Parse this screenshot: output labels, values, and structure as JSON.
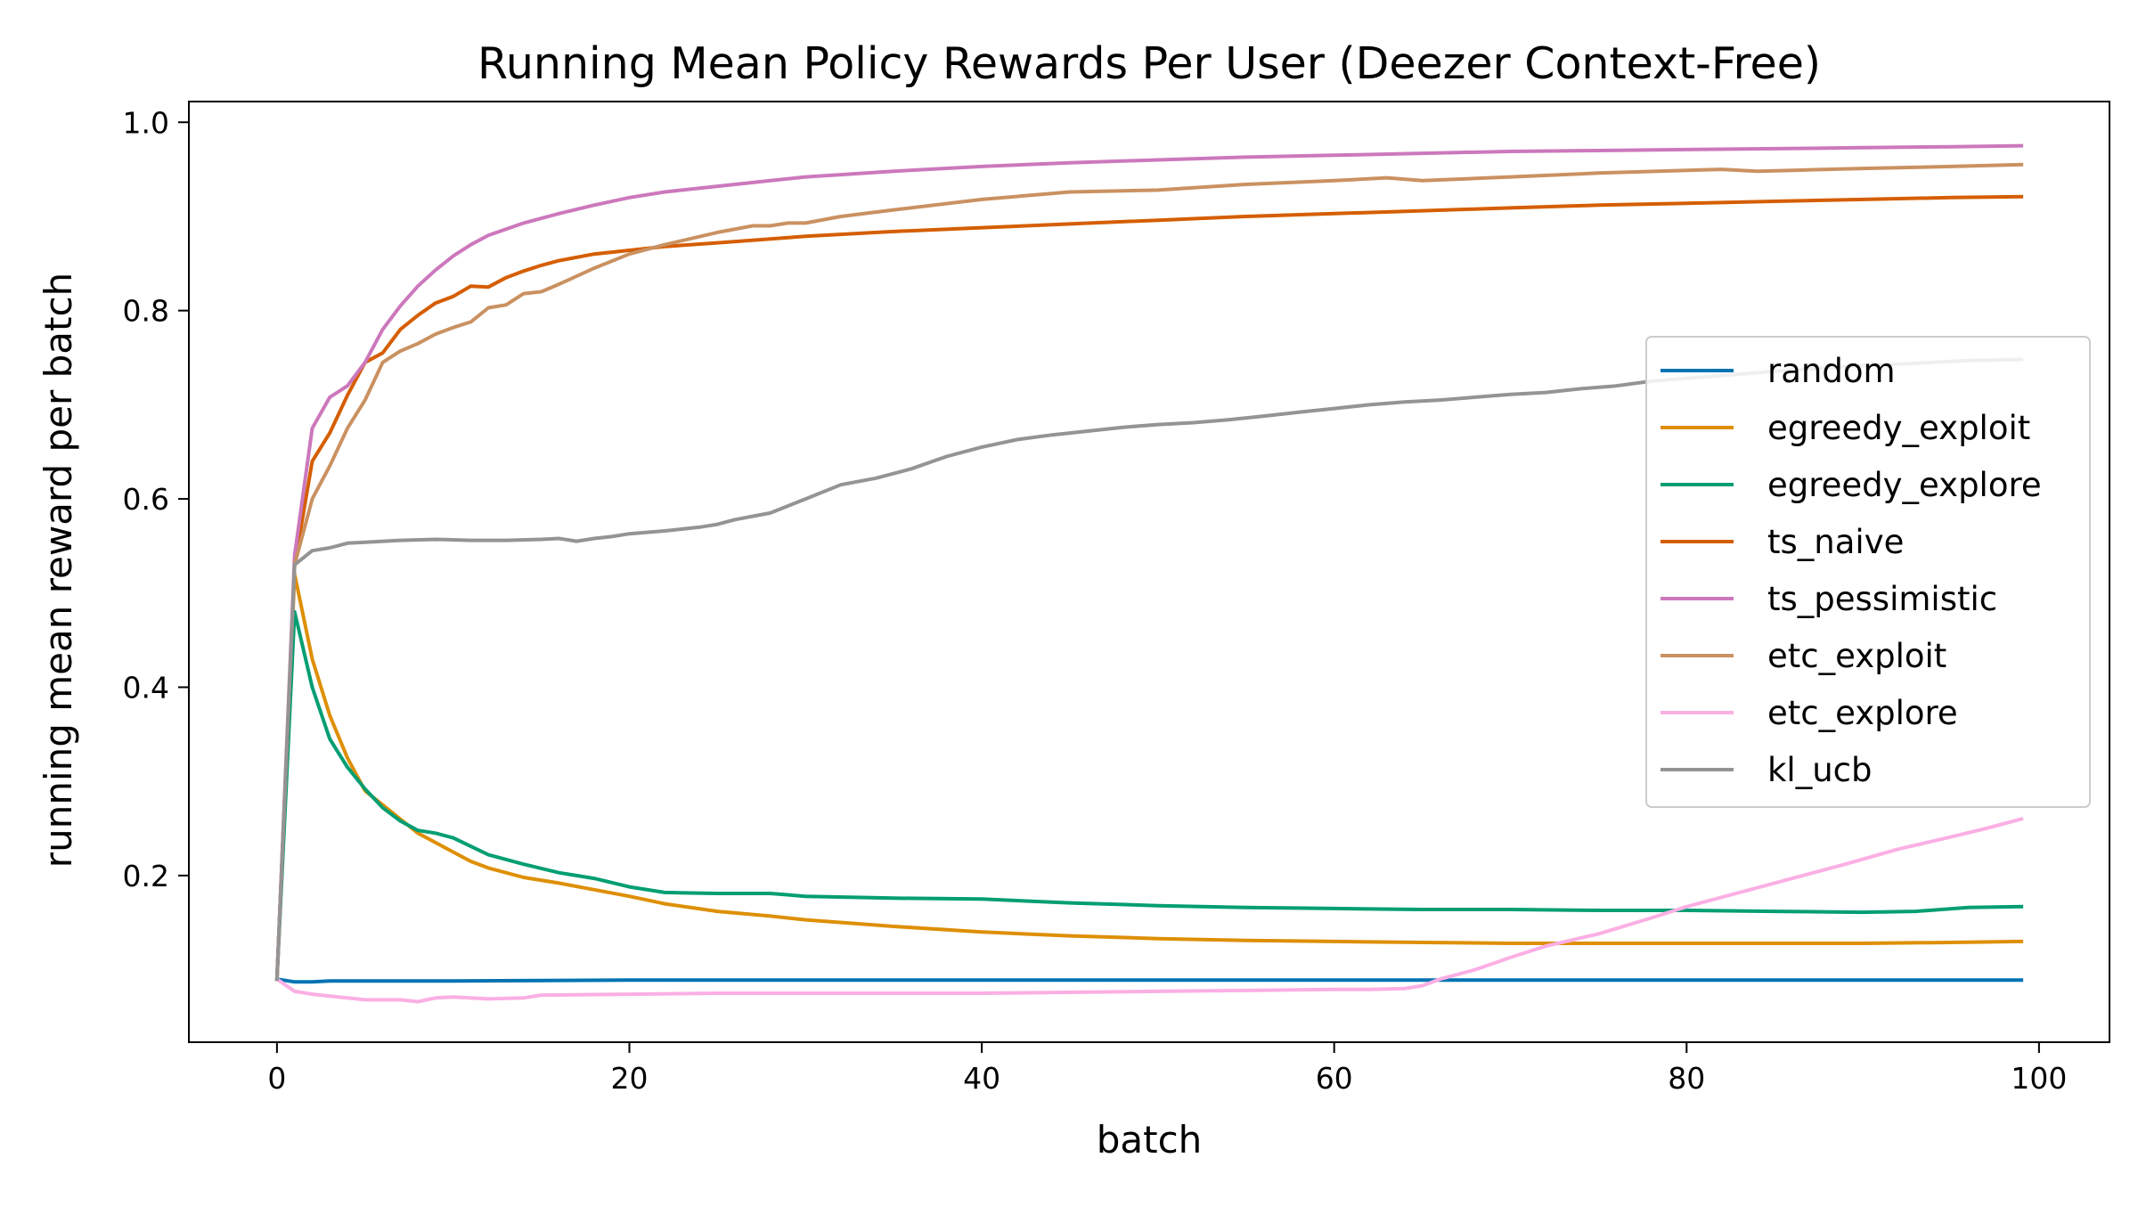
{
  "chart_data": {
    "type": "line",
    "title": "Running Mean Policy Rewards Per User (Deezer Context-Free)",
    "xlabel": "batch",
    "ylabel": "running mean reward per batch",
    "xlim": [
      -5,
      104
    ],
    "ylim": [
      0.023,
      1.022
    ],
    "xticks": [
      0,
      20,
      40,
      60,
      80,
      100
    ],
    "yticks": [
      0.2,
      0.4,
      0.6,
      0.8,
      1.0
    ],
    "xtick_labels": [
      "0",
      "20",
      "40",
      "60",
      "80",
      "100"
    ],
    "ytick_labels": [
      "0.2",
      "0.4",
      "0.6",
      "0.8",
      "1.0"
    ],
    "grid": false,
    "legend_position": "center-right",
    "series": [
      {
        "name": "random",
        "color": "#0173b2",
        "points": [
          [
            0,
            0.09
          ],
          [
            1,
            0.087
          ],
          [
            2,
            0.087
          ],
          [
            3,
            0.088
          ],
          [
            5,
            0.088
          ],
          [
            10,
            0.088
          ],
          [
            20,
            0.089
          ],
          [
            40,
            0.089
          ],
          [
            60,
            0.089
          ],
          [
            80,
            0.089
          ],
          [
            99,
            0.089
          ]
        ]
      },
      {
        "name": "egreedy_exploit",
        "color": "#de8f05",
        "points": [
          [
            0,
            0.09
          ],
          [
            1,
            0.52
          ],
          [
            2,
            0.43
          ],
          [
            3,
            0.37
          ],
          [
            4,
            0.325
          ],
          [
            5,
            0.29
          ],
          [
            6,
            0.275
          ],
          [
            7,
            0.26
          ],
          [
            8,
            0.245
          ],
          [
            9,
            0.235
          ],
          [
            10,
            0.225
          ],
          [
            11,
            0.215
          ],
          [
            12,
            0.208
          ],
          [
            14,
            0.198
          ],
          [
            16,
            0.192
          ],
          [
            18,
            0.185
          ],
          [
            20,
            0.178
          ],
          [
            22,
            0.17
          ],
          [
            25,
            0.162
          ],
          [
            28,
            0.157
          ],
          [
            30,
            0.153
          ],
          [
            35,
            0.146
          ],
          [
            40,
            0.14
          ],
          [
            45,
            0.136
          ],
          [
            50,
            0.133
          ],
          [
            55,
            0.131
          ],
          [
            60,
            0.13
          ],
          [
            65,
            0.129
          ],
          [
            70,
            0.128
          ],
          [
            75,
            0.128
          ],
          [
            80,
            0.128
          ],
          [
            85,
            0.128
          ],
          [
            90,
            0.128
          ],
          [
            95,
            0.129
          ],
          [
            99,
            0.13
          ]
        ]
      },
      {
        "name": "egreedy_explore",
        "color": "#029e73",
        "points": [
          [
            0,
            0.09
          ],
          [
            1,
            0.48
          ],
          [
            2,
            0.4
          ],
          [
            3,
            0.345
          ],
          [
            4,
            0.315
          ],
          [
            5,
            0.292
          ],
          [
            6,
            0.272
          ],
          [
            7,
            0.258
          ],
          [
            8,
            0.248
          ],
          [
            9,
            0.245
          ],
          [
            10,
            0.24
          ],
          [
            12,
            0.222
          ],
          [
            14,
            0.212
          ],
          [
            16,
            0.203
          ],
          [
            18,
            0.197
          ],
          [
            20,
            0.188
          ],
          [
            22,
            0.182
          ],
          [
            25,
            0.181
          ],
          [
            28,
            0.181
          ],
          [
            30,
            0.178
          ],
          [
            35,
            0.176
          ],
          [
            40,
            0.175
          ],
          [
            45,
            0.171
          ],
          [
            50,
            0.168
          ],
          [
            55,
            0.166
          ],
          [
            60,
            0.165
          ],
          [
            65,
            0.164
          ],
          [
            70,
            0.164
          ],
          [
            75,
            0.163
          ],
          [
            80,
            0.163
          ],
          [
            85,
            0.162
          ],
          [
            90,
            0.161
          ],
          [
            93,
            0.162
          ],
          [
            96,
            0.166
          ],
          [
            99,
            0.167
          ]
        ]
      },
      {
        "name": "ts_naive",
        "color": "#d55e00",
        "points": [
          [
            0,
            0.09
          ],
          [
            1,
            0.53
          ],
          [
            2,
            0.64
          ],
          [
            3,
            0.67
          ],
          [
            4,
            0.71
          ],
          [
            5,
            0.745
          ],
          [
            6,
            0.755
          ],
          [
            7,
            0.78
          ],
          [
            8,
            0.795
          ],
          [
            9,
            0.808
          ],
          [
            10,
            0.815
          ],
          [
            11,
            0.826
          ],
          [
            12,
            0.825
          ],
          [
            13,
            0.835
          ],
          [
            14,
            0.842
          ],
          [
            15,
            0.848
          ],
          [
            16,
            0.853
          ],
          [
            18,
            0.86
          ],
          [
            20,
            0.864
          ],
          [
            22,
            0.868
          ],
          [
            25,
            0.872
          ],
          [
            28,
            0.876
          ],
          [
            30,
            0.879
          ],
          [
            35,
            0.884
          ],
          [
            40,
            0.888
          ],
          [
            45,
            0.892
          ],
          [
            50,
            0.896
          ],
          [
            55,
            0.9
          ],
          [
            60,
            0.903
          ],
          [
            65,
            0.906
          ],
          [
            70,
            0.909
          ],
          [
            75,
            0.912
          ],
          [
            80,
            0.914
          ],
          [
            85,
            0.916
          ],
          [
            90,
            0.918
          ],
          [
            95,
            0.92
          ],
          [
            99,
            0.921
          ]
        ]
      },
      {
        "name": "ts_pessimistic",
        "color": "#cc78bc",
        "points": [
          [
            0,
            0.09
          ],
          [
            1,
            0.54
          ],
          [
            2,
            0.675
          ],
          [
            3,
            0.708
          ],
          [
            4,
            0.72
          ],
          [
            5,
            0.745
          ],
          [
            6,
            0.78
          ],
          [
            7,
            0.805
          ],
          [
            8,
            0.826
          ],
          [
            9,
            0.843
          ],
          [
            10,
            0.858
          ],
          [
            11,
            0.87
          ],
          [
            12,
            0.88
          ],
          [
            14,
            0.893
          ],
          [
            16,
            0.903
          ],
          [
            18,
            0.912
          ],
          [
            20,
            0.92
          ],
          [
            22,
            0.926
          ],
          [
            25,
            0.932
          ],
          [
            28,
            0.938
          ],
          [
            30,
            0.942
          ],
          [
            35,
            0.948
          ],
          [
            40,
            0.953
          ],
          [
            45,
            0.957
          ],
          [
            50,
            0.96
          ],
          [
            55,
            0.963
          ],
          [
            60,
            0.965
          ],
          [
            65,
            0.967
          ],
          [
            70,
            0.969
          ],
          [
            75,
            0.97
          ],
          [
            80,
            0.971
          ],
          [
            85,
            0.972
          ],
          [
            90,
            0.973
          ],
          [
            95,
            0.974
          ],
          [
            99,
            0.975
          ]
        ]
      },
      {
        "name": "etc_exploit",
        "color": "#ca9161",
        "points": [
          [
            0,
            0.09
          ],
          [
            1,
            0.53
          ],
          [
            2,
            0.6
          ],
          [
            3,
            0.635
          ],
          [
            4,
            0.675
          ],
          [
            5,
            0.705
          ],
          [
            6,
            0.745
          ],
          [
            7,
            0.757
          ],
          [
            8,
            0.765
          ],
          [
            9,
            0.775
          ],
          [
            10,
            0.782
          ],
          [
            11,
            0.788
          ],
          [
            12,
            0.803
          ],
          [
            13,
            0.806
          ],
          [
            14,
            0.818
          ],
          [
            15,
            0.82
          ],
          [
            16,
            0.828
          ],
          [
            18,
            0.845
          ],
          [
            20,
            0.86
          ],
          [
            22,
            0.87
          ],
          [
            25,
            0.883
          ],
          [
            27,
            0.89
          ],
          [
            28,
            0.89
          ],
          [
            29,
            0.893
          ],
          [
            30,
            0.893
          ],
          [
            32,
            0.9
          ],
          [
            35,
            0.907
          ],
          [
            40,
            0.918
          ],
          [
            45,
            0.926
          ],
          [
            50,
            0.928
          ],
          [
            55,
            0.934
          ],
          [
            60,
            0.938
          ],
          [
            63,
            0.941
          ],
          [
            65,
            0.938
          ],
          [
            70,
            0.942
          ],
          [
            75,
            0.946
          ],
          [
            80,
            0.949
          ],
          [
            82,
            0.95
          ],
          [
            84,
            0.948
          ],
          [
            86,
            0.949
          ],
          [
            90,
            0.951
          ],
          [
            95,
            0.953
          ],
          [
            99,
            0.955
          ]
        ]
      },
      {
        "name": "etc_explore",
        "color": "#fbafe4",
        "points": [
          [
            0,
            0.09
          ],
          [
            1,
            0.077
          ],
          [
            2,
            0.074
          ],
          [
            3,
            0.072
          ],
          [
            4,
            0.07
          ],
          [
            5,
            0.068
          ],
          [
            7,
            0.068
          ],
          [
            8,
            0.066
          ],
          [
            9,
            0.07
          ],
          [
            10,
            0.071
          ],
          [
            12,
            0.069
          ],
          [
            14,
            0.07
          ],
          [
            15,
            0.073
          ],
          [
            20,
            0.074
          ],
          [
            25,
            0.075
          ],
          [
            30,
            0.075
          ],
          [
            35,
            0.075
          ],
          [
            40,
            0.075
          ],
          [
            45,
            0.076
          ],
          [
            50,
            0.077
          ],
          [
            55,
            0.078
          ],
          [
            60,
            0.079
          ],
          [
            62,
            0.079
          ],
          [
            64,
            0.08
          ],
          [
            65,
            0.083
          ],
          [
            66,
            0.09
          ],
          [
            68,
            0.1
          ],
          [
            70,
            0.113
          ],
          [
            72,
            0.125
          ],
          [
            75,
            0.138
          ],
          [
            78,
            0.155
          ],
          [
            80,
            0.167
          ],
          [
            83,
            0.182
          ],
          [
            86,
            0.197
          ],
          [
            89,
            0.212
          ],
          [
            92,
            0.228
          ],
          [
            95,
            0.241
          ],
          [
            97,
            0.25
          ],
          [
            99,
            0.26
          ]
        ]
      },
      {
        "name": "kl_ucb",
        "color": "#949494",
        "points": [
          [
            0,
            0.09
          ],
          [
            1,
            0.53
          ],
          [
            2,
            0.545
          ],
          [
            3,
            0.548
          ],
          [
            4,
            0.553
          ],
          [
            5,
            0.554
          ],
          [
            7,
            0.556
          ],
          [
            9,
            0.557
          ],
          [
            11,
            0.556
          ],
          [
            13,
            0.556
          ],
          [
            15,
            0.557
          ],
          [
            16,
            0.558
          ],
          [
            17,
            0.555
          ],
          [
            18,
            0.558
          ],
          [
            19,
            0.56
          ],
          [
            20,
            0.563
          ],
          [
            22,
            0.566
          ],
          [
            24,
            0.57
          ],
          [
            25,
            0.573
          ],
          [
            26,
            0.578
          ],
          [
            28,
            0.585
          ],
          [
            30,
            0.6
          ],
          [
            32,
            0.615
          ],
          [
            34,
            0.622
          ],
          [
            36,
            0.632
          ],
          [
            38,
            0.645
          ],
          [
            40,
            0.655
          ],
          [
            42,
            0.663
          ],
          [
            44,
            0.668
          ],
          [
            46,
            0.672
          ],
          [
            48,
            0.676
          ],
          [
            50,
            0.679
          ],
          [
            52,
            0.681
          ],
          [
            54,
            0.684
          ],
          [
            56,
            0.688
          ],
          [
            58,
            0.692
          ],
          [
            60,
            0.696
          ],
          [
            62,
            0.7
          ],
          [
            64,
            0.703
          ],
          [
            66,
            0.705
          ],
          [
            68,
            0.708
          ],
          [
            70,
            0.711
          ],
          [
            72,
            0.713
          ],
          [
            74,
            0.717
          ],
          [
            76,
            0.72
          ],
          [
            78,
            0.725
          ],
          [
            80,
            0.728
          ],
          [
            82,
            0.731
          ],
          [
            84,
            0.734
          ],
          [
            86,
            0.737
          ],
          [
            88,
            0.739
          ],
          [
            90,
            0.742
          ],
          [
            92,
            0.743
          ],
          [
            94,
            0.745
          ],
          [
            96,
            0.747
          ],
          [
            99,
            0.748
          ]
        ]
      }
    ]
  }
}
